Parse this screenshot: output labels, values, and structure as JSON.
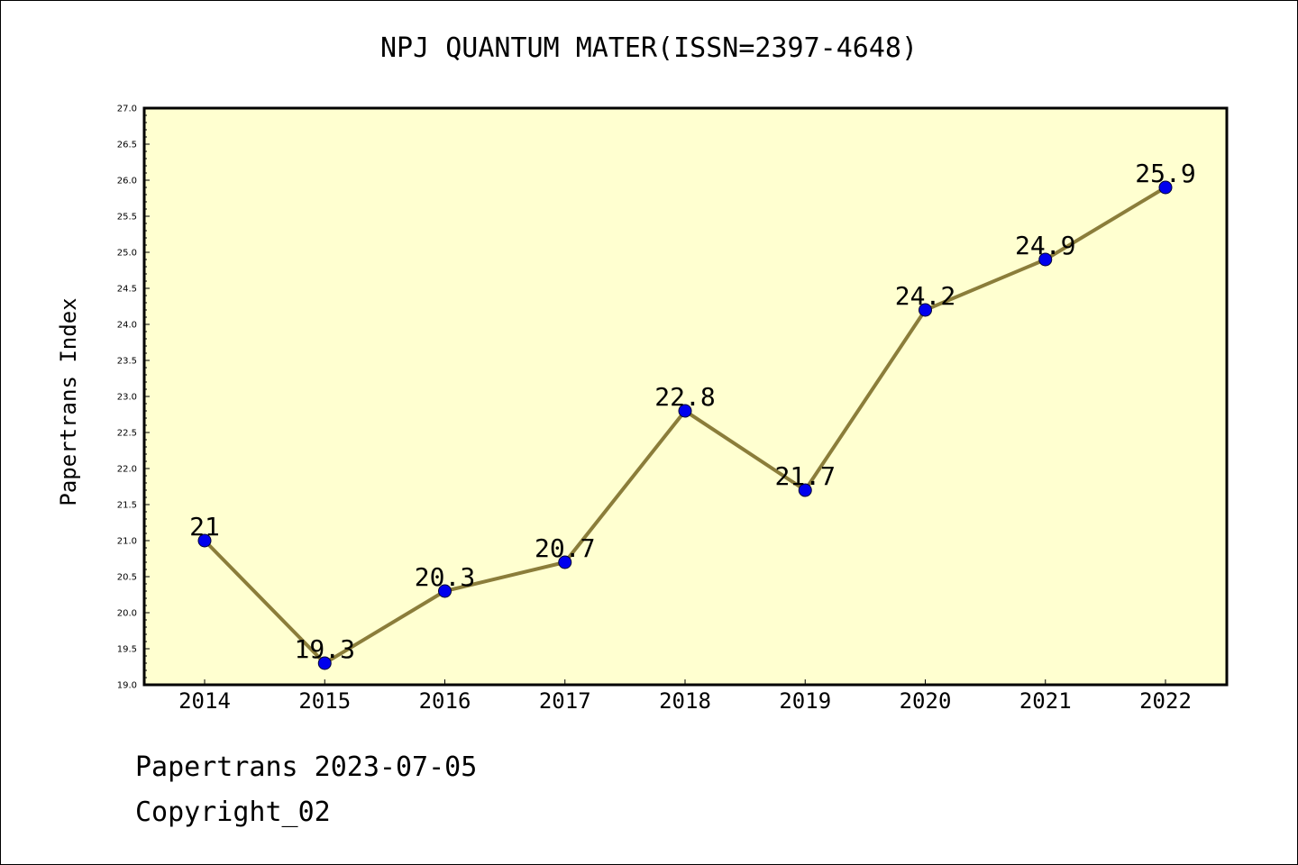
{
  "chart_data": {
    "type": "line",
    "title": "NPJ QUANTUM MATER(ISSN=2397-4648)",
    "ylabel": "Papertrans Index",
    "xlabel": "",
    "x": [
      "2014",
      "2015",
      "2016",
      "2017",
      "2018",
      "2019",
      "2020",
      "2021",
      "2022"
    ],
    "series": [
      {
        "values": [
          21,
          19.3,
          20.3,
          20.7,
          22.8,
          21.7,
          24.2,
          24.9,
          25.9
        ],
        "labels": [
          "21",
          "19.3",
          "20.3",
          "20.7",
          "22.8",
          "21.7",
          "24.2",
          "24.9",
          "25.9"
        ],
        "line_color": "#8b7d3a",
        "marker_color": "#0000ee"
      }
    ],
    "ylim": [
      19.0,
      27.0
    ],
    "y_ticks": [
      "19.0",
      "19.5",
      "20.0",
      "20.5",
      "21.0",
      "21.5",
      "22.0",
      "22.5",
      "23.0",
      "23.5",
      "24.0",
      "24.5",
      "25.0",
      "25.5",
      "26.0",
      "26.5",
      "27.0"
    ],
    "background_color": "#ffffd0",
    "grid": false
  },
  "footer": {
    "line1": "Papertrans 2023-07-05",
    "line2": "Copyright_02"
  }
}
